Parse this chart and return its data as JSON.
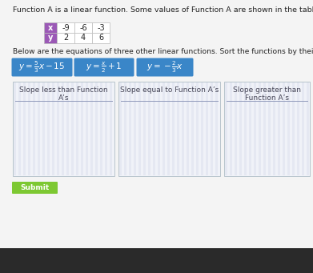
{
  "title_text": "Function A is a linear function. Some values of Function A are shown in the table.",
  "table_x_label": "x",
  "table_y_label": "y",
  "table_x_values": [
    "-9",
    "-6",
    "-3"
  ],
  "table_y_values": [
    "2",
    "4",
    "6"
  ],
  "table_header_bg": "#9b59b6",
  "table_header_text": "#ffffff",
  "table_cell_bg": "#ffffff",
  "table_cell_border": "#bbbbbb",
  "subtitle_text": "Below are the equations of three other linear functions. Sort the functions by their slope.",
  "eq1_math": "$y = \\frac{5}{3}x - 15$",
  "eq2_math": "$y = \\frac{x}{2} + 1$",
  "eq3_math": "$y = -\\frac{2}{3}x$",
  "eq_bg": "#3a86c8",
  "eq_border": "#2060a0",
  "eq_text": "#ffffff",
  "box_border": "#b8c4cc",
  "box_bg": "#f0f2f8",
  "stripe_color": "#dde0ee",
  "col1_label": "Slope less than Function\nA’s",
  "col2_label": "Slope equal to Function A’s",
  "col3_label": "Slope greater than\nFunction A’s",
  "underline_color": "#9099bb",
  "submit_bg": "#7dc832",
  "submit_text": "Submit",
  "submit_text_color": "#ffffff",
  "bg_color": "#f0f0f0",
  "content_bg": "#f0f0f0",
  "title_fontsize": 6.8,
  "subtitle_fontsize": 6.6,
  "eq_fontsize": 7.5,
  "col_label_fontsize": 6.5,
  "table_fontsize": 7.0
}
